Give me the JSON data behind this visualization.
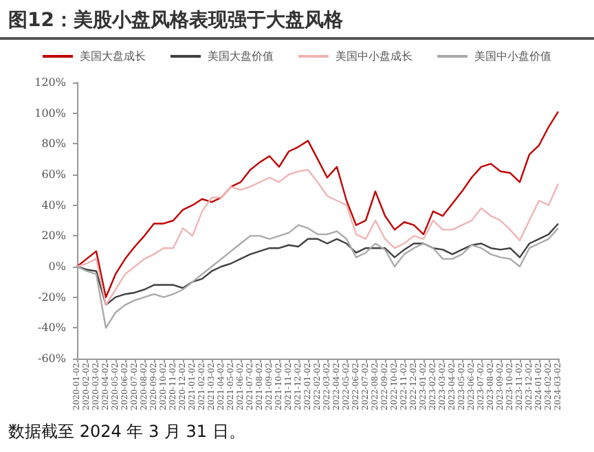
{
  "chart_data": {
    "type": "line",
    "title": "图12：美股小盘风格表现强于大盘风格",
    "categories": [
      "2020-01-02",
      "2020-02-02",
      "2020-03-02",
      "2020-04-02",
      "2020-05-02",
      "2020-06-02",
      "2020-07-02",
      "2020-08-02",
      "2020-09-02",
      "2020-10-02",
      "2020-11-02",
      "2020-12-02",
      "2021-01-02",
      "2021-02-02",
      "2021-03-02",
      "2021-04-02",
      "2021-05-02",
      "2021-06-02",
      "2021-07-02",
      "2021-08-02",
      "2021-09-02",
      "2021-10-02",
      "2021-11-02",
      "2021-12-02",
      "2022-01-02",
      "2022-02-02",
      "2022-03-02",
      "2022-04-02",
      "2022-05-02",
      "2022-06-02",
      "2022-07-02",
      "2022-08-02",
      "2022-09-02",
      "2022-10-02",
      "2022-11-02",
      "2022-12-02",
      "2023-01-02",
      "2023-02-02",
      "2023-03-02",
      "2023-04-02",
      "2023-05-02",
      "2023-06-02",
      "2023-07-02",
      "2023-08-02",
      "2023-09-02",
      "2023-10-02",
      "2023-11-02",
      "2023-12-02",
      "2024-01-02",
      "2024-02-02",
      "2024-03-02"
    ],
    "series": [
      {
        "name": "美国大盘成长",
        "color": "#c00000",
        "values": [
          0,
          5,
          10,
          -20,
          -5,
          5,
          13,
          20,
          28,
          28,
          30,
          37,
          40,
          44,
          42,
          45,
          52,
          55,
          63,
          68,
          72,
          65,
          75,
          78,
          82,
          70,
          58,
          65,
          43,
          27,
          30,
          49,
          33,
          24,
          29,
          27,
          21,
          36,
          33,
          41,
          49,
          58,
          65,
          67,
          62,
          61,
          55,
          73,
          79,
          91,
          101
        ]
      },
      {
        "name": "美国大盘价值",
        "color": "#404040",
        "values": [
          0,
          -2,
          -3,
          -25,
          -20,
          -18,
          -17,
          -15,
          -12,
          -12,
          -12,
          -14,
          -10,
          -8,
          -3,
          0,
          2,
          5,
          8,
          10,
          12,
          12,
          14,
          13,
          18,
          18,
          15,
          18,
          15,
          9,
          12,
          12,
          12,
          6,
          11,
          15,
          15,
          12,
          11,
          8,
          11,
          14,
          15,
          12,
          11,
          12,
          6,
          15,
          18,
          21,
          28
        ]
      },
      {
        "name": "美国中小盘成长",
        "color": "#f0b4b4",
        "values": [
          0,
          2,
          5,
          -25,
          -15,
          -5,
          0,
          5,
          8,
          12,
          12,
          25,
          20,
          36,
          45,
          45,
          52,
          50,
          52,
          55,
          58,
          55,
          60,
          62,
          63,
          55,
          46,
          43,
          40,
          21,
          18,
          30,
          18,
          12,
          15,
          20,
          18,
          30,
          24,
          24,
          27,
          30,
          38,
          33,
          30,
          24,
          17,
          30,
          43,
          40,
          54
        ]
      },
      {
        "name": "美国中小盘价值",
        "color": "#aaaaaa",
        "values": [
          0,
          -3,
          -5,
          -40,
          -30,
          -25,
          -22,
          -20,
          -18,
          -20,
          -18,
          -15,
          -10,
          -5,
          0,
          5,
          10,
          15,
          20,
          20,
          18,
          20,
          22,
          27,
          25,
          21,
          21,
          23,
          18,
          6,
          9,
          15,
          11,
          0,
          8,
          12,
          15,
          12,
          5,
          5,
          8,
          14,
          12,
          8,
          6,
          5,
          0,
          12,
          15,
          18,
          25
        ]
      }
    ],
    "ylim": [
      -60,
      120
    ],
    "yticks": [
      {
        "value": -60,
        "label": "-60%"
      },
      {
        "value": -40,
        "label": "-40%"
      },
      {
        "value": -20,
        "label": "-20%"
      },
      {
        "value": 0,
        "label": "0%"
      },
      {
        "value": 20,
        "label": "20%"
      },
      {
        "value": 40,
        "label": "40%"
      },
      {
        "value": 60,
        "label": "60%"
      },
      {
        "value": 80,
        "label": "80%"
      },
      {
        "value": 100,
        "label": "100%"
      },
      {
        "value": 120,
        "label": "120%"
      }
    ],
    "grid": false,
    "legend": "top",
    "marker": "none",
    "line_style": "solid",
    "annotations": [
      "数据截至 2024 年 3 月 31 日。"
    ]
  }
}
